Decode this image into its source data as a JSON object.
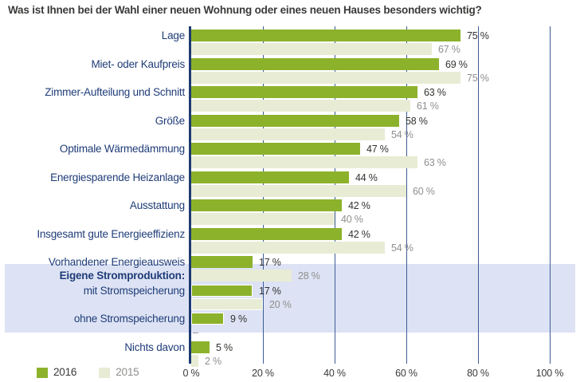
{
  "title": "Was ist Ihnen bei der Wahl einer neuen Wohnung oder eines neuen Hauses besonders wichtig?",
  "legend": {
    "items": [
      {
        "label": "2016",
        "color": "#8cb22b"
      },
      {
        "label": "2015",
        "color": "#e8ecd4"
      }
    ]
  },
  "colors": {
    "bar_2016": "#8cb22b",
    "bar_2015": "#e8ecd4",
    "category_text": "#1f3c78",
    "axis_line": "#1e3a72",
    "gridline": "#3d5c95",
    "highlight_band": "#dde3f4",
    "title_text": "#3a3a39",
    "value_2016_text": "#323230",
    "value_2015_text": "#8f8f8d"
  },
  "chart_data": {
    "type": "bar",
    "orientation": "horizontal",
    "title": "Was ist Ihnen bei der Wahl einer neuen Wohnung oder eines neuen Hauses besonders wichtig?",
    "xlim": [
      0,
      100
    ],
    "x_ticks": [
      0,
      20,
      40,
      60,
      80,
      100
    ],
    "x_tick_labels": [
      "0 %",
      "20 %",
      "40 %",
      "60 %",
      "80 %",
      "100 %"
    ],
    "grid": "vertical",
    "legend_position": "bottom-left",
    "categories": [
      "Lage",
      "Miet- oder Kaufpreis",
      "Zimmer-Aufteilung und Schnitt",
      "Größe",
      "Optimale Wärmedämmung",
      "Energiesparende Heizanlage",
      "Ausstattung",
      "Insgesamt gute Energieeffizienz",
      "Vorhandener Energieausweis",
      "mit Stromspeicherung",
      "ohne Stromspeicherung",
      "Nichts davon"
    ],
    "group_header": {
      "row": 9,
      "label": "Eigene Stromproduktion:"
    },
    "highlighted_rows": [
      9,
      10
    ],
    "series": [
      {
        "name": "2016",
        "color": "#8cb22b",
        "values": [
          75,
          69,
          63,
          58,
          47,
          44,
          42,
          42,
          17,
          17,
          9,
          5
        ]
      },
      {
        "name": "2015",
        "color": "#e8ecd4",
        "values": [
          67,
          75,
          61,
          54,
          63,
          60,
          40,
          54,
          28,
          20,
          null,
          2
        ]
      }
    ],
    "value_suffix": " %",
    "null_value_display": "–"
  }
}
